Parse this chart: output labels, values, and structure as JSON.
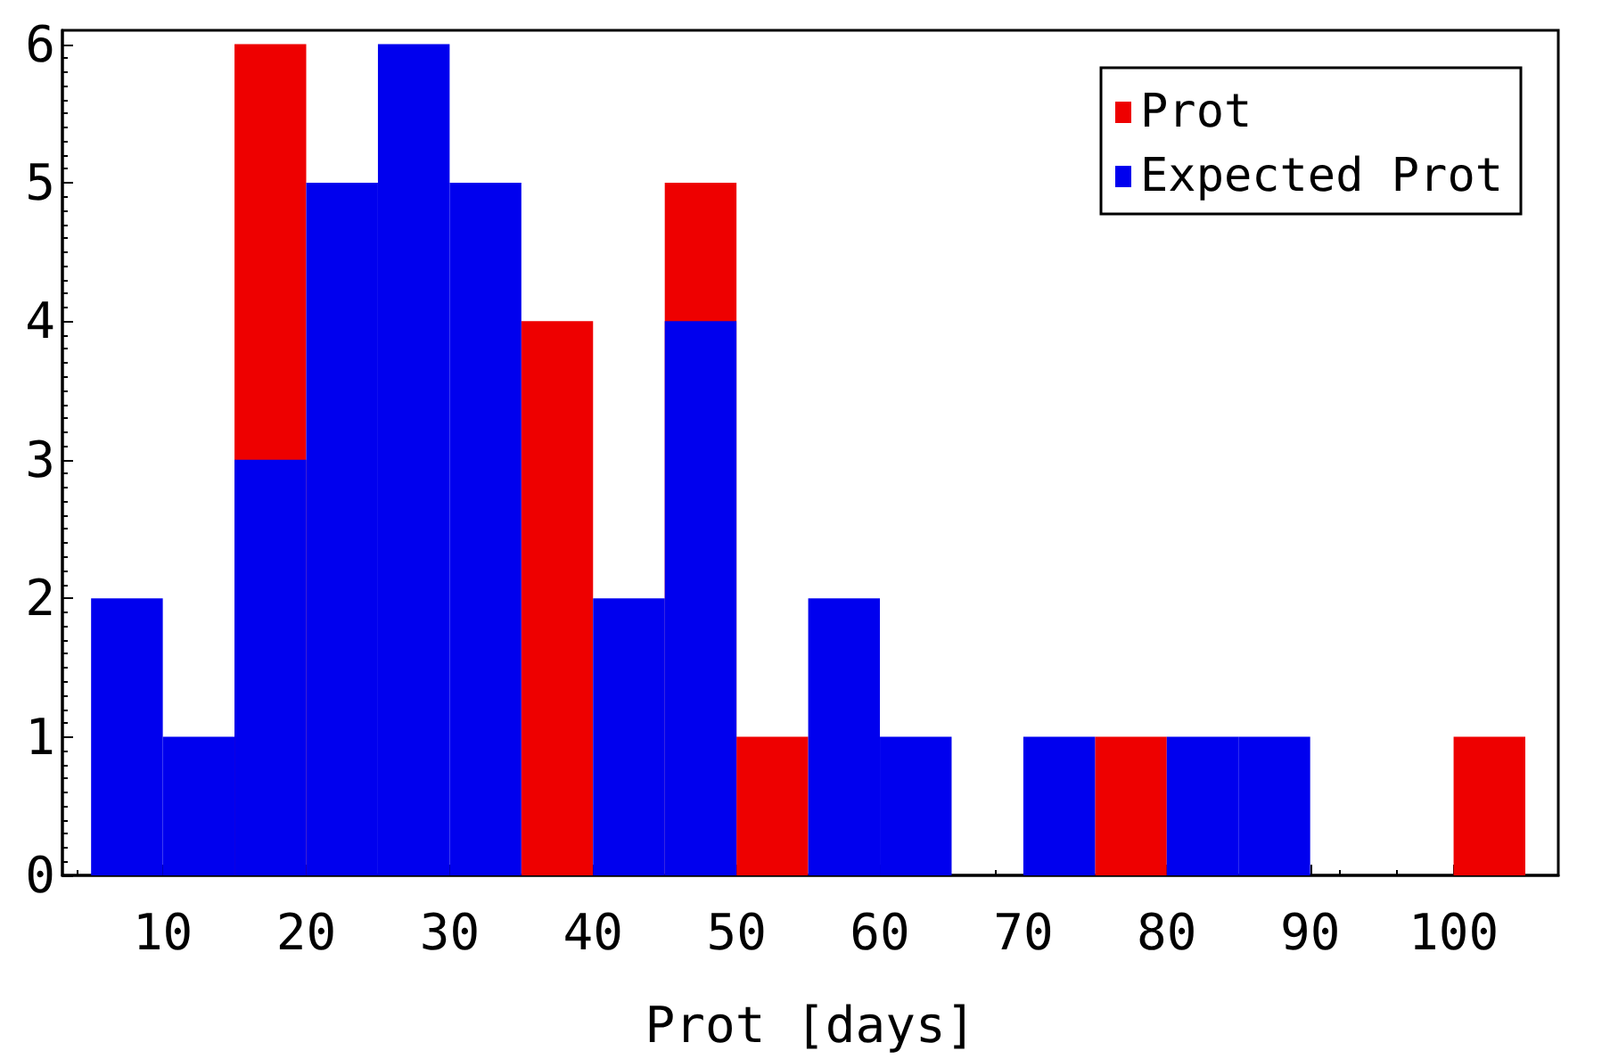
{
  "chart_data": {
    "type": "histogram",
    "xlabel": "Prot [days]",
    "bins": [
      5,
      10,
      15,
      20,
      25,
      30,
      35,
      40,
      45,
      50,
      55,
      60,
      65,
      70,
      75,
      80,
      85,
      90,
      95,
      100,
      105
    ],
    "series": [
      {
        "name": "Prot",
        "color": "#ee0000",
        "values": [
          null,
          null,
          6,
          null,
          null,
          null,
          4,
          null,
          5,
          1,
          null,
          null,
          0,
          null,
          1,
          null,
          null,
          0,
          0,
          1
        ]
      },
      {
        "name": "Expected Prot",
        "color": "#0000ee",
        "values": [
          2,
          1,
          3,
          5,
          6,
          5,
          0,
          2,
          4,
          0,
          2,
          1,
          0,
          1,
          0,
          1,
          1,
          0,
          0,
          0
        ]
      }
    ],
    "xlim": [
      3,
      107.3
    ],
    "xticks": [
      10,
      20,
      30,
      40,
      50,
      60,
      70,
      80,
      90,
      100
    ],
    "ylim": [
      0,
      6.1
    ],
    "yticks": [
      0,
      1,
      2,
      3,
      4,
      5,
      6
    ],
    "grid": false,
    "legend": "top right"
  }
}
